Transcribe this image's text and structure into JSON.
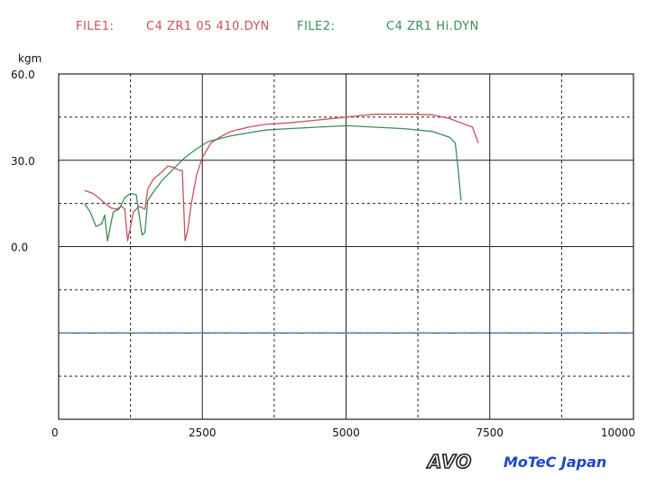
{
  "header": {
    "file1_label": "FILE1:",
    "file1_name": "C4 ZR1 05 410.DYN",
    "file2_label": "FILE2:",
    "file2_name": "C4 ZR1 Hi.DYN"
  },
  "logo": {
    "avo": "AVO",
    "motec": "MoTeC Japan"
  },
  "colors": {
    "file1": "#c8525b",
    "file2": "#3d8c5a",
    "reference_line": "#4a7fc0"
  },
  "chart_data": {
    "type": "line",
    "ylabel": "kgm",
    "xlim": [
      0,
      10000
    ],
    "ylim": [
      -60,
      60
    ],
    "x_ticks": [
      "0",
      "2500",
      "5000",
      "7500",
      "10000"
    ],
    "y_ticks": [
      {
        "value": 60,
        "label": "60.0"
      },
      {
        "value": 30,
        "label": "30.0"
      },
      {
        "value": 0,
        "label": "0.0"
      }
    ],
    "grid": true,
    "reference_line_y": -30,
    "series": [
      {
        "name": "C4 ZR1 05 410.DYN",
        "color": "#c8525b",
        "x": [
          450,
          600,
          750,
          900,
          1000,
          1050,
          1100,
          1150,
          1200,
          1300,
          1400,
          1500,
          1550,
          1650,
          1800,
          1900,
          2000,
          2050,
          2100,
          2150,
          2200,
          2250,
          2300,
          2400,
          2500,
          2650,
          2800,
          3000,
          3300,
          3600,
          4000,
          4500,
          5000,
          5500,
          6000,
          6500,
          6800,
          7000,
          7200,
          7300
        ],
        "y": [
          19.5,
          18.5,
          16,
          13.5,
          13,
          13.5,
          14,
          13,
          2,
          12,
          14,
          13,
          20,
          23.5,
          26,
          28,
          27.5,
          27,
          26.5,
          26.5,
          2,
          6,
          14,
          25,
          31,
          36,
          38,
          40,
          41.5,
          42.5,
          43,
          44,
          45,
          46,
          46,
          45.8,
          44.5,
          43,
          41.5,
          36
        ]
      },
      {
        "name": "C4 ZR1 Hi.DYN",
        "color": "#3d8c5a",
        "x": [
          450,
          550,
          650,
          750,
          800,
          850,
          900,
          950,
          1050,
          1150,
          1250,
          1350,
          1450,
          1500,
          1550,
          1650,
          1800,
          2000,
          2200,
          2400,
          2600,
          2800,
          3000,
          3300,
          3600,
          4000,
          4500,
          5000,
          5500,
          6000,
          6500,
          6800,
          6900,
          6950,
          7000
        ],
        "y": [
          15,
          12,
          7,
          8,
          11,
          2,
          7,
          12,
          13,
          17,
          18.5,
          18,
          4,
          5,
          16,
          19,
          23,
          27,
          31,
          34,
          36.5,
          37.5,
          38.5,
          39.5,
          40.5,
          41,
          41.5,
          42,
          41.5,
          41,
          40,
          38,
          36,
          27,
          16
        ]
      }
    ]
  }
}
